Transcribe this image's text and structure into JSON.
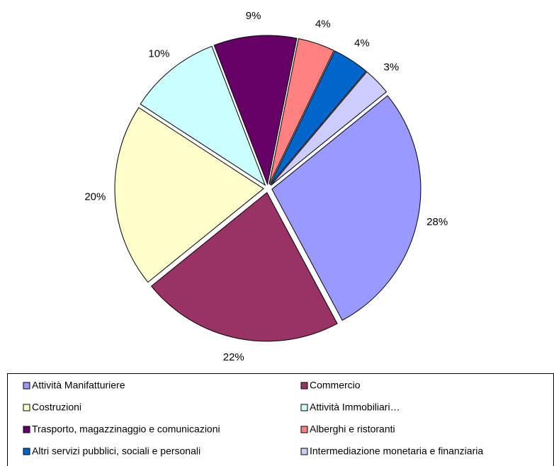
{
  "chart_data": {
    "type": "pie",
    "categories": [
      "Attività Manifatturiere",
      "Commercio",
      "Costruzioni",
      "Attività Immobiliari…",
      "Trasporto, magazzinaggio e comunicazioni",
      "Alberghi e ristoranti",
      "Altri servizi pubblici, sociali e personali",
      "Intermediazione monetaria e finanziaria"
    ],
    "values": [
      28,
      22,
      20,
      10,
      9,
      4,
      4,
      3
    ],
    "value_labels": [
      "28%",
      "22%",
      "20%",
      "10%",
      "9%",
      "4%",
      "4%",
      "3%"
    ],
    "colors": [
      "#9999ff",
      "#993366",
      "#ffffcc",
      "#ccffff",
      "#660066",
      "#ff8080",
      "#0066cc",
      "#ccccff"
    ],
    "legend": "bottom"
  }
}
